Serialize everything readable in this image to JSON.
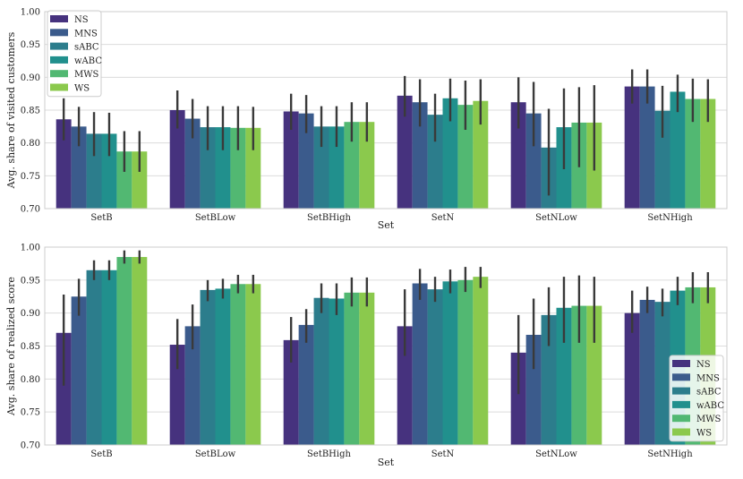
{
  "series_names": [
    "NS",
    "MNS",
    "sABC",
    "wABC",
    "MWS",
    "WS"
  ],
  "colors": [
    "#46327e",
    "#3b5b8c",
    "#2c7d8c",
    "#21908d",
    "#52b872",
    "#8bc94d"
  ],
  "chart_data": [
    {
      "type": "bar",
      "title": "",
      "xlabel": "Set",
      "ylabel": "Avg. share of visited customers",
      "ylim": [
        0.7,
        1.0
      ],
      "yticks": [
        0.7,
        0.75,
        0.8,
        0.85,
        0.9,
        0.95,
        1.0
      ],
      "ytick_labels": [
        "0.70",
        "0.75",
        "0.80",
        "0.85",
        "0.90",
        "0.95",
        "1.00"
      ],
      "legend_position": "upper-left",
      "categories": [
        "SetB",
        "SetBLow",
        "SetBHigh",
        "SetN",
        "SetNLow",
        "SetNHigh"
      ],
      "series": [
        {
          "name": "NS",
          "values": [
            0.836,
            0.85,
            0.848,
            0.872,
            0.862,
            0.886
          ],
          "err_low": [
            0.804,
            0.822,
            0.82,
            0.84,
            0.822,
            0.86
          ],
          "err_high": [
            0.868,
            0.88,
            0.875,
            0.902,
            0.9,
            0.912
          ]
        },
        {
          "name": "MNS",
          "values": [
            0.825,
            0.837,
            0.845,
            0.862,
            0.845,
            0.886
          ],
          "err_low": [
            0.795,
            0.807,
            0.815,
            0.825,
            0.795,
            0.86
          ],
          "err_high": [
            0.855,
            0.867,
            0.873,
            0.897,
            0.893,
            0.912
          ]
        },
        {
          "name": "sABC",
          "values": [
            0.814,
            0.824,
            0.825,
            0.843,
            0.793,
            0.849
          ],
          "err_low": [
            0.78,
            0.789,
            0.794,
            0.802,
            0.72,
            0.808
          ],
          "err_high": [
            0.847,
            0.856,
            0.856,
            0.875,
            0.852,
            0.887
          ]
        },
        {
          "name": "wABC",
          "values": [
            0.814,
            0.824,
            0.825,
            0.868,
            0.824,
            0.878
          ],
          "err_low": [
            0.78,
            0.789,
            0.794,
            0.833,
            0.76,
            0.847
          ],
          "err_high": [
            0.846,
            0.856,
            0.856,
            0.898,
            0.883,
            0.904
          ]
        },
        {
          "name": "MWS",
          "values": [
            0.787,
            0.823,
            0.832,
            0.858,
            0.831,
            0.867
          ],
          "err_low": [
            0.756,
            0.789,
            0.802,
            0.82,
            0.763,
            0.832
          ],
          "err_high": [
            0.818,
            0.856,
            0.862,
            0.895,
            0.885,
            0.898
          ]
        },
        {
          "name": "WS",
          "values": [
            0.787,
            0.823,
            0.832,
            0.864,
            0.831,
            0.867
          ],
          "err_low": [
            0.756,
            0.789,
            0.802,
            0.828,
            0.758,
            0.832
          ],
          "err_high": [
            0.818,
            0.855,
            0.862,
            0.897,
            0.888,
            0.897
          ]
        }
      ]
    },
    {
      "type": "bar",
      "title": "",
      "xlabel": "Set",
      "ylabel": "Avg. share of realized score",
      "ylim": [
        0.7,
        1.0
      ],
      "yticks": [
        0.7,
        0.75,
        0.8,
        0.85,
        0.9,
        0.95,
        1.0
      ],
      "ytick_labels": [
        "0.70",
        "0.75",
        "0.80",
        "0.85",
        "0.90",
        "0.95",
        "1.00"
      ],
      "legend_position": "lower-right",
      "categories": [
        "SetB",
        "SetBLow",
        "SetBHigh",
        "SetN",
        "SetNLow",
        "SetNHigh"
      ],
      "series": [
        {
          "name": "NS",
          "values": [
            0.87,
            0.852,
            0.859,
            0.88,
            0.84,
            0.9
          ],
          "err_low": [
            0.79,
            0.815,
            0.825,
            0.835,
            0.777,
            0.87
          ],
          "err_high": [
            0.928,
            0.891,
            0.894,
            0.936,
            0.897,
            0.934
          ]
        },
        {
          "name": "MNS",
          "values": [
            0.925,
            0.88,
            0.882,
            0.945,
            0.867,
            0.92
          ],
          "err_low": [
            0.896,
            0.845,
            0.855,
            0.92,
            0.815,
            0.9
          ],
          "err_high": [
            0.952,
            0.913,
            0.906,
            0.967,
            0.922,
            0.94
          ]
        },
        {
          "name": "sABC",
          "values": [
            0.965,
            0.935,
            0.923,
            0.936,
            0.897,
            0.917
          ],
          "err_low": [
            0.95,
            0.918,
            0.9,
            0.917,
            0.85,
            0.895
          ],
          "err_high": [
            0.98,
            0.95,
            0.945,
            0.955,
            0.939,
            0.937
          ]
        },
        {
          "name": "wABC",
          "values": [
            0.965,
            0.937,
            0.922,
            0.948,
            0.908,
            0.934
          ],
          "err_low": [
            0.95,
            0.922,
            0.897,
            0.93,
            0.855,
            0.912
          ],
          "err_high": [
            0.98,
            0.952,
            0.945,
            0.966,
            0.955,
            0.955
          ]
        },
        {
          "name": "MWS",
          "values": [
            0.985,
            0.944,
            0.931,
            0.95,
            0.911,
            0.939
          ],
          "err_low": [
            0.975,
            0.93,
            0.91,
            0.932,
            0.855,
            0.915
          ],
          "err_high": [
            0.995,
            0.958,
            0.954,
            0.97,
            0.957,
            0.962
          ]
        },
        {
          "name": "WS",
          "values": [
            0.985,
            0.944,
            0.931,
            0.955,
            0.911,
            0.939
          ],
          "err_low": [
            0.975,
            0.93,
            0.91,
            0.938,
            0.855,
            0.915
          ],
          "err_high": [
            0.995,
            0.958,
            0.954,
            0.97,
            0.955,
            0.962
          ]
        }
      ]
    }
  ]
}
